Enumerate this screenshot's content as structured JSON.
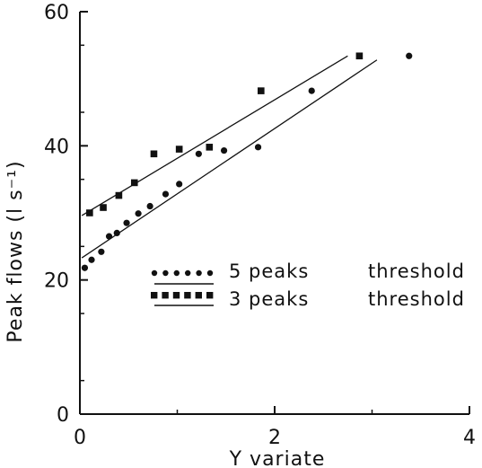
{
  "chart_data": {
    "type": "scatter",
    "xlabel": "Y variate",
    "ylabel": "Peak flows (l s⁻¹)",
    "xlim": [
      0,
      4
    ],
    "ylim": [
      0,
      60
    ],
    "x_ticks": [
      "0",
      "2",
      "4"
    ],
    "y_ticks": [
      "0",
      "20",
      "40",
      "60"
    ],
    "legend_position": "center-left",
    "colors": {
      "ink": "#111111",
      "background": "#ffffff"
    },
    "series": [
      {
        "name": "5 peaks",
        "name_suffix": "threshold",
        "marker": "circle",
        "points": [
          [
            0.05,
            21.8
          ],
          [
            0.12,
            23.0
          ],
          [
            0.22,
            24.2
          ],
          [
            0.3,
            26.5
          ],
          [
            0.38,
            27.0
          ],
          [
            0.48,
            28.5
          ],
          [
            0.6,
            29.9
          ],
          [
            0.72,
            31.0
          ],
          [
            0.88,
            32.8
          ],
          [
            1.02,
            34.3
          ],
          [
            1.22,
            38.8
          ],
          [
            1.48,
            39.3
          ],
          [
            1.83,
            39.8
          ],
          [
            2.38,
            48.2
          ],
          [
            3.38,
            53.4
          ]
        ],
        "trend": {
          "x": [
            0.02,
            3.05
          ],
          "y": [
            23.3,
            52.8
          ]
        }
      },
      {
        "name": "3 peaks",
        "name_suffix": "threshold",
        "marker": "square",
        "points": [
          [
            0.1,
            30.0
          ],
          [
            0.24,
            30.8
          ],
          [
            0.4,
            32.6
          ],
          [
            0.56,
            34.5
          ],
          [
            0.76,
            38.8
          ],
          [
            1.02,
            39.5
          ],
          [
            1.33,
            39.8
          ],
          [
            1.86,
            48.2
          ],
          [
            2.87,
            53.4
          ]
        ],
        "trend": {
          "x": [
            0.02,
            2.75
          ],
          "y": [
            29.6,
            53.4
          ]
        }
      }
    ]
  }
}
